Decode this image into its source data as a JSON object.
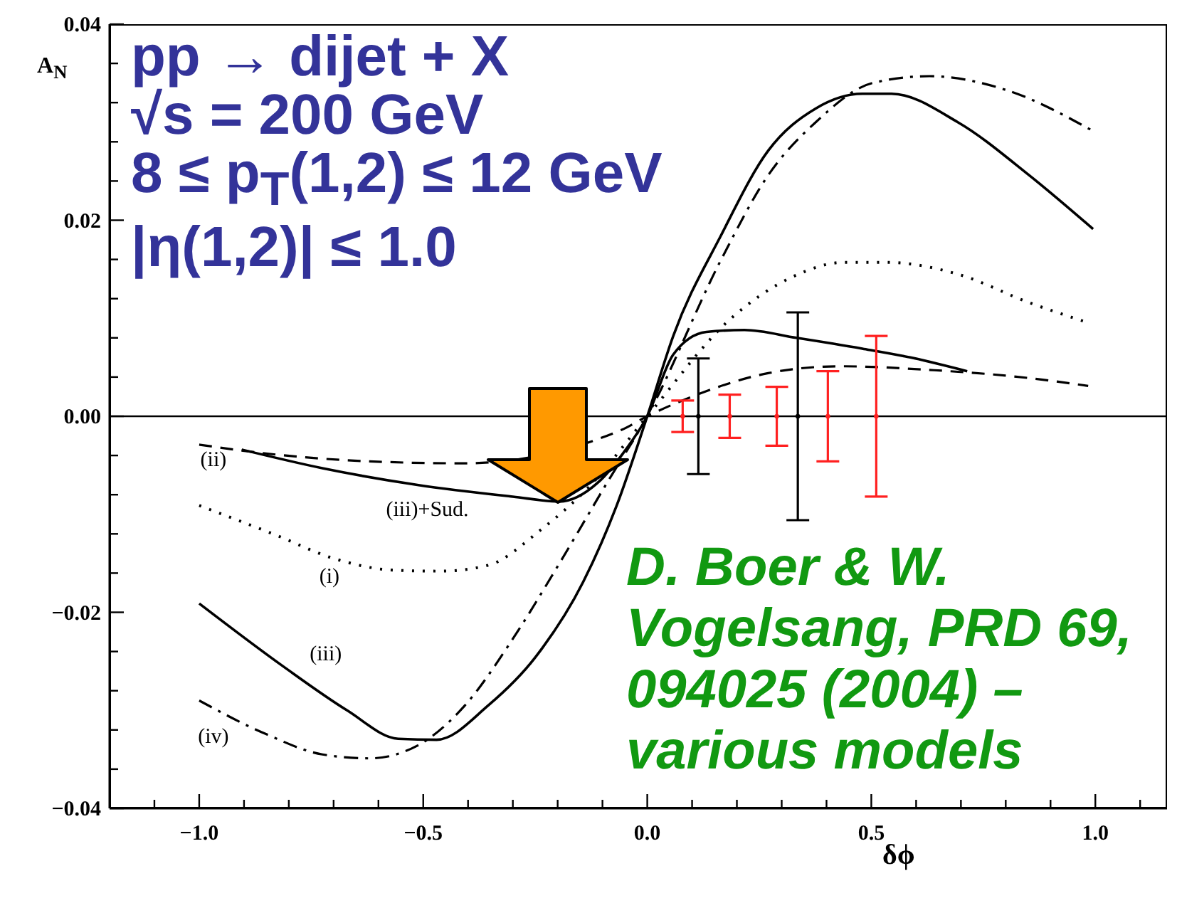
{
  "chart_data": {
    "type": "line",
    "xlabel": "δϕ",
    "ylabel": "A$_{N}$",
    "xlim": [
      -1.2,
      1.16
    ],
    "ylim": [
      -0.04,
      0.04
    ],
    "xticks": [
      {
        "value": -1.1,
        "label": null
      },
      {
        "value": -1.0,
        "label": "−1.0"
      },
      {
        "value": -0.9,
        "label": null
      },
      {
        "value": -0.8,
        "label": null
      },
      {
        "value": -0.7,
        "label": null
      },
      {
        "value": -0.6,
        "label": null
      },
      {
        "value": -0.5,
        "label": "−0.5"
      },
      {
        "value": -0.4,
        "label": null
      },
      {
        "value": -0.3,
        "label": null
      },
      {
        "value": -0.2,
        "label": null
      },
      {
        "value": -0.1,
        "label": null
      },
      {
        "value": 0,
        "label": "0.0"
      },
      {
        "value": 0.1,
        "label": null
      },
      {
        "value": 0.2,
        "label": null
      },
      {
        "value": 0.3,
        "label": null
      },
      {
        "value": 0.4,
        "label": null
      },
      {
        "value": 0.5,
        "label": "0.5"
      },
      {
        "value": 0.6,
        "label": null
      },
      {
        "value": 0.7,
        "label": null
      },
      {
        "value": 0.8,
        "label": null
      },
      {
        "value": 0.9,
        "label": null
      },
      {
        "value": 1.0,
        "label": "1.0"
      },
      {
        "value": 1.1,
        "label": null
      }
    ],
    "yticks": [
      {
        "value": -0.04,
        "label": "−0.04"
      },
      {
        "value": -0.036,
        "label": null
      },
      {
        "value": -0.032,
        "label": null
      },
      {
        "value": -0.028,
        "label": null
      },
      {
        "value": -0.024,
        "label": null
      },
      {
        "value": -0.02,
        "label": "−0.02"
      },
      {
        "value": -0.016,
        "label": null
      },
      {
        "value": -0.012,
        "label": null
      },
      {
        "value": -0.008,
        "label": null
      },
      {
        "value": -0.004,
        "label": null
      },
      {
        "value": 0,
        "label": "0.00"
      },
      {
        "value": 0.004,
        "label": null
      },
      {
        "value": 0.008,
        "label": null
      },
      {
        "value": 0.012,
        "label": null
      },
      {
        "value": 0.016,
        "label": null
      },
      {
        "value": 0.02,
        "label": "0.02"
      },
      {
        "value": 0.024,
        "label": null
      },
      {
        "value": 0.028,
        "label": null
      },
      {
        "value": 0.032,
        "label": null
      },
      {
        "value": 0.036,
        "label": null
      },
      {
        "value": 0.04,
        "label": "0.04"
      }
    ],
    "ref_lines": [
      {
        "axis": "y",
        "value": 0,
        "color": "#000000"
      }
    ],
    "series": [
      {
        "name": "(iii)",
        "color": "#000000",
        "line_style": "solid",
        "x": [
          -1.0,
          -0.81,
          -0.67,
          -0.556,
          -0.47,
          -0.355,
          -0.25,
          -0.143,
          -0.069,
          0,
          0.058,
          0.164,
          0.27,
          0.376,
          0.48,
          0.545,
          0.693,
          0.852,
          0.995
        ],
        "values": [
          -0.0191,
          -0.0256,
          -0.03,
          -0.0329,
          -0.033,
          -0.0295,
          -0.0246,
          -0.0169,
          -0.0092,
          0,
          0.0082,
          0.0184,
          0.0271,
          0.0314,
          0.0329,
          0.0329,
          0.03,
          0.0246,
          0.0191
        ]
      },
      {
        "name": "(iv)",
        "color": "#000000",
        "line_style": "dashdot",
        "x": [
          -1.0,
          -0.852,
          -0.725,
          -0.62,
          -0.513,
          -0.407,
          -0.3,
          -0.196,
          -0.09,
          0,
          0.164,
          0.27,
          0.376,
          0.503,
          0.63,
          0.8,
          0.995
        ],
        "values": [
          -0.029,
          -0.0324,
          -0.0345,
          -0.0349,
          -0.0336,
          -0.0295,
          -0.0227,
          -0.015,
          -0.0068,
          0,
          0.0159,
          0.0246,
          0.03,
          0.034,
          0.0347,
          0.0333,
          0.0291
        ]
      },
      {
        "name": "(i)",
        "color": "#000000",
        "line_style": "dotted",
        "x": [
          -1.0,
          -0.83,
          -0.7,
          -0.566,
          -0.46,
          -0.355,
          -0.238,
          -0.13,
          0,
          0.185,
          0.323,
          0.44,
          0.534,
          0.693,
          0.852,
          0.98
        ],
        "values": [
          -0.0091,
          -0.0121,
          -0.0145,
          -0.0157,
          -0.0158,
          -0.0152,
          -0.0116,
          -0.0072,
          0,
          0.0099,
          0.0142,
          0.0157,
          0.0157,
          0.0145,
          0.0116,
          0.0096
        ]
      },
      {
        "name": "(ii)",
        "color": "#000000",
        "line_style": "dashed",
        "x": [
          -1.0,
          -0.83,
          -0.62,
          -0.41,
          -0.058,
          0,
          0.111,
          0.27,
          0.429,
          0.64,
          0.852,
          0.984
        ],
        "values": [
          -0.0029,
          -0.0039,
          -0.0046,
          -0.0048,
          -0.0014,
          0,
          0.0022,
          0.0044,
          0.0051,
          0.0047,
          0.0039,
          0.0031
        ]
      },
      {
        "name": "(iii)+Sud.",
        "color": "#000000",
        "line_style": "solid",
        "x": [
          -0.905,
          -0.725,
          -0.513,
          -0.3,
          -0.196,
          -0.111,
          -0.048,
          0,
          0.058,
          0.132,
          0.217,
          0.333,
          0.48,
          0.587,
          0.714
        ],
        "values": [
          -0.0034,
          -0.0053,
          -0.007,
          -0.0082,
          -0.0087,
          -0.0068,
          -0.0034,
          0,
          0.0063,
          0.0086,
          0.0088,
          0.008,
          0.0069,
          0.006,
          0.0046
        ]
      },
      {
        "type": "scatter",
        "color": "#ff2020",
        "x": [
          0.079,
          0.184,
          0.289,
          0.403,
          0.511
        ],
        "values": [
          0,
          0,
          0,
          0,
          0
        ],
        "errors": [
          0.0016,
          0.0022,
          0.003,
          0.0046,
          0.0082
        ]
      },
      {
        "type": "scatter",
        "color": "#000000",
        "x": [
          0.114,
          0.336
        ],
        "values": [
          0,
          0
        ],
        "errors": [
          0.0059,
          0.0106
        ]
      }
    ],
    "annotations": [
      "pp → dijet + X",
      "√s = 200 GeV",
      "8 ≤ p$_{T}$(1,2) ≤ 12 GeV",
      "|η(1,2)| ≤ 1.0",
      "D. Boer & W. Vogelsang, PRD 69, 094025 (2004) – various models"
    ]
  }
}
